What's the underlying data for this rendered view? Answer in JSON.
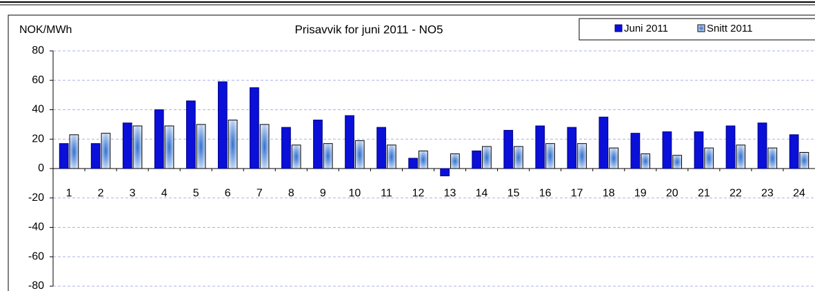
{
  "chart_data": {
    "type": "bar",
    "title": "Prisavvik for juni 2011 - NO5",
    "y_label": "NOK/MWh",
    "categories": [
      "1",
      "2",
      "3",
      "4",
      "5",
      "6",
      "7",
      "8",
      "9",
      "10",
      "11",
      "12",
      "13",
      "14",
      "15",
      "16",
      "17",
      "18",
      "19",
      "20",
      "21",
      "22",
      "23",
      "24"
    ],
    "series": [
      {
        "name": "Juni 2011",
        "color": "#0a10d8",
        "values": [
          17,
          17,
          31,
          40,
          46,
          59,
          55,
          28,
          33,
          36,
          28,
          7,
          -5,
          12,
          26,
          29,
          28,
          35,
          24,
          25,
          25,
          29,
          31,
          23
        ]
      },
      {
        "name": "Snitt 2011",
        "color": "#b8d2f2",
        "values": [
          23,
          24,
          29,
          29,
          30,
          33,
          30,
          16,
          17,
          19,
          16,
          12,
          10,
          15,
          15,
          17,
          17,
          14,
          10,
          9,
          14,
          16,
          14,
          11
        ]
      }
    ],
    "ylim": [
      -80,
      80
    ],
    "yticks": [
      -80,
      -60,
      -40,
      -20,
      0,
      20,
      40,
      60,
      80
    ],
    "grid": true,
    "legend": "top-right"
  }
}
